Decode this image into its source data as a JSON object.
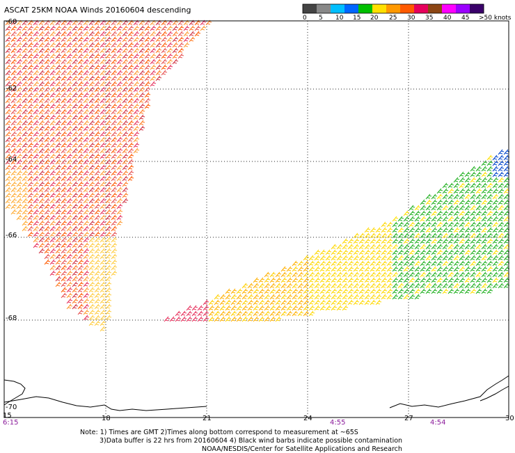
{
  "title": "ASCAT 25KM NOAA Winds 20160604 descending",
  "legend": {
    "labels": [
      "0",
      "5",
      "10",
      "15",
      "20",
      "25",
      "30",
      "35",
      "40",
      "45",
      ">50 knots"
    ],
    "colors": [
      "#444444",
      "#888888",
      "#00bfff",
      "#0066ff",
      "#00c000",
      "#ffe000",
      "#ff9900",
      "#ff5a00",
      "#e6005c",
      "#8b4513",
      "#ff00ff",
      "#9b00ff",
      "#3a006a"
    ]
  },
  "axes": {
    "x_ticks": [
      "15",
      "18",
      "21",
      "24",
      "27",
      "30"
    ],
    "y_ticks": [
      "-60",
      "-62",
      "-64",
      "-66",
      "-68",
      "-70"
    ]
  },
  "pass_times": [
    "6:15",
    "4:55",
    "4:54"
  ],
  "notes": [
    "Note: 1) Times are GMT 2)Times along bottom correspond to measurement at ~65S",
    "3)Data buffer is 22 hrs from 20160604 4) Black wind barbs indicate possible contamination",
    "NOAA/NESDIS/Center for Satellite Applications and Research"
  ]
}
